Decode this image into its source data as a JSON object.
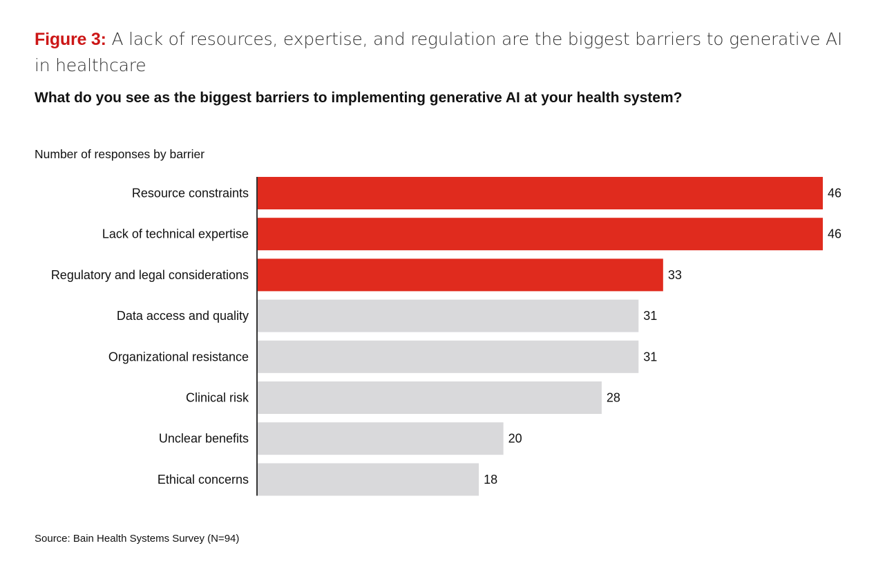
{
  "header": {
    "figure_label": "Figure 3:",
    "title_text": " A lack of resources, expertise, and regulation are the biggest barriers to generative AI in healthcare",
    "question": "What do you see as the biggest barriers to implementing generative AI at your health system?",
    "unit_label": "Number of responses by barrier"
  },
  "footer": {
    "source": "Source: Bain Health Systems Survey (N=94)"
  },
  "colors": {
    "highlight": "#e02b1e",
    "neutral": "#d9d9db",
    "axis": "#333333",
    "figure_label": "#cc1717"
  },
  "chart_data": {
    "type": "bar",
    "orientation": "horizontal",
    "title": "What do you see as the biggest barriers to implementing generative AI at your health system?",
    "xlabel": "Number of responses by barrier",
    "ylabel": "",
    "categories": [
      "Resource constraints",
      "Lack of technical expertise",
      "Regulatory and legal considerations",
      "Data access and quality",
      "Organizational resistance",
      "Clinical risk",
      "Unclear benefits",
      "Ethical concerns"
    ],
    "values": [
      46,
      46,
      33,
      31,
      31,
      28,
      20,
      18
    ],
    "highlighted": [
      true,
      true,
      true,
      false,
      false,
      false,
      false,
      false
    ],
    "xlim": [
      0,
      46
    ],
    "grid": false,
    "data_labels": true
  }
}
